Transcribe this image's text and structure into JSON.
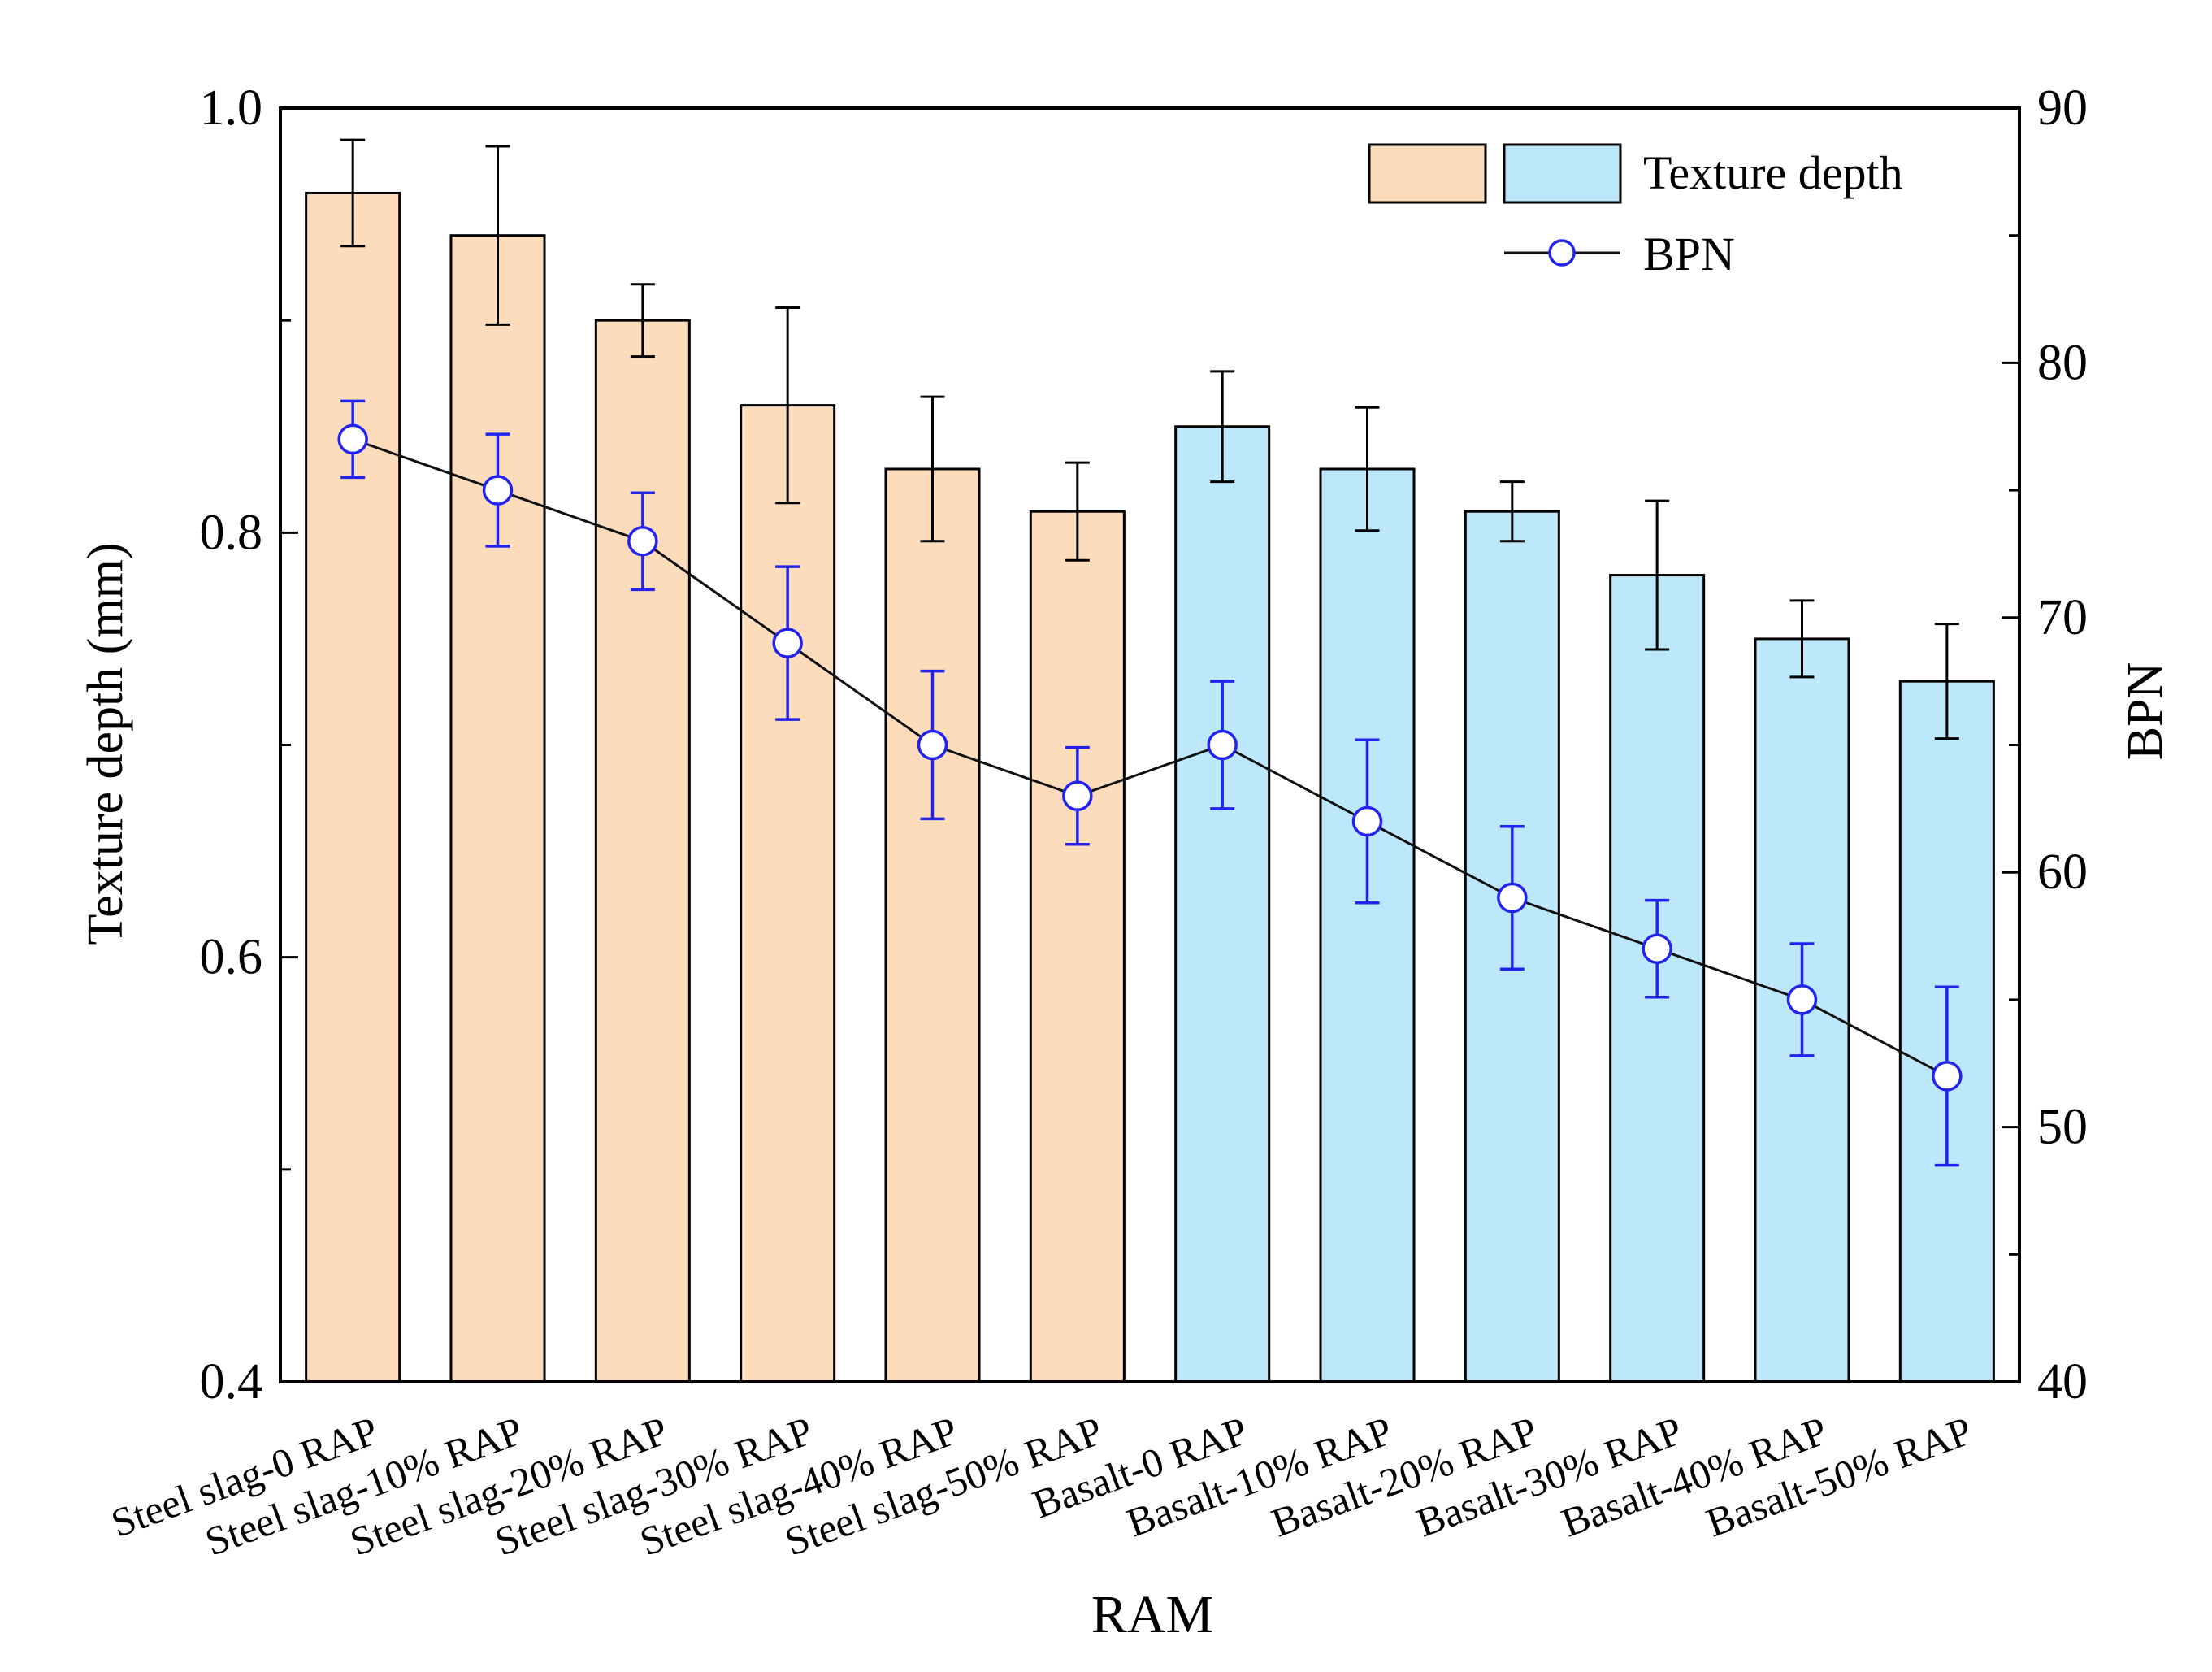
{
  "chart_data": {
    "type": "bar",
    "xlabel": "RAM",
    "ylabel": "Texture depth (mm)",
    "y2label": "BPN",
    "ylim": [
      0.4,
      1.0
    ],
    "y2lim": [
      40,
      90
    ],
    "yticks": [
      "0.4",
      "0.6",
      "0.8",
      "1.0"
    ],
    "y2ticks": [
      "40",
      "50",
      "60",
      "70",
      "80",
      "90"
    ],
    "categories": [
      "Steel slag-0 RAP",
      "Steel slag-10% RAP",
      "Steel slag-20% RAP",
      "Steel slag-30% RAP",
      "Steel slag-40% RAP",
      "Steel slag-50% RAP",
      "Basalt-0 RAP",
      "Basalt-10% RAP",
      "Basalt-20% RAP",
      "Basalt-30% RAP",
      "Basalt-40% RAP",
      "Basalt-50% RAP"
    ],
    "series": [
      {
        "name": "Texture depth",
        "kind": "bar",
        "axis": "left",
        "values": [
          0.96,
          0.94,
          0.9,
          0.86,
          0.83,
          0.81,
          0.85,
          0.83,
          0.81,
          0.78,
          0.75,
          0.73
        ],
        "errors": [
          0.025,
          0.042,
          0.017,
          0.046,
          0.034,
          0.023,
          0.026,
          0.029,
          0.014,
          0.035,
          0.018,
          0.027
        ],
        "group_colors": [
          "#FDDCBC",
          "#FDDCBC",
          "#FDDCBC",
          "#FDDCBC",
          "#FDDCBC",
          "#FDDCBC",
          "#BDE7FA",
          "#BDE7FA",
          "#BDE7FA",
          "#BDE7FA",
          "#BDE7FA",
          "#BDE7FA"
        ]
      },
      {
        "name": "BPN",
        "kind": "line",
        "axis": "right",
        "values": [
          77,
          75,
          73,
          69,
          65,
          63,
          65,
          62,
          59,
          57,
          55,
          52
        ],
        "errors": [
          1.5,
          2.2,
          1.9,
          3.0,
          2.9,
          1.9,
          2.5,
          3.2,
          2.8,
          1.9,
          2.2,
          3.5
        ]
      }
    ],
    "legend": {
      "position": "top-right",
      "bar_label": "Texture depth",
      "line_label": "BPN"
    },
    "colors": {
      "steel_bar": "#FDDCBC",
      "basalt_bar": "#BDE7FA",
      "marker_stroke": "#2323F0",
      "line": "#111111",
      "axis": "#000000"
    }
  }
}
